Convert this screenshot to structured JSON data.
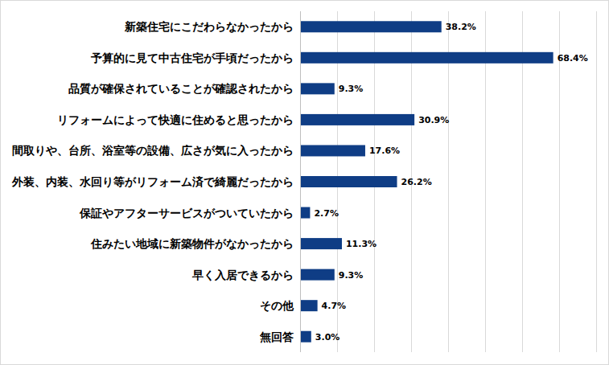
{
  "chart_data": {
    "type": "bar",
    "orientation": "horizontal",
    "categories": [
      "新築住宅にこだわらなかったから",
      "予算的に見て中古住宅が手頃だったから",
      "品質が確保されていることが確認されたから",
      "リフォームによって快適に住めると思ったから",
      "間取りや、台所、浴室等の設備、広さが気に入ったから",
      "外装、内装、水回り等がリフォーム済で綺麗だったから",
      "保証やアフターサービスがついていたから",
      "住みたい地域に新築物件がなかったから",
      "早く入居できるから",
      "その他",
      "無回答"
    ],
    "values": [
      38.2,
      68.4,
      9.3,
      30.9,
      17.6,
      26.2,
      2.7,
      11.3,
      9.3,
      4.7,
      3.0
    ],
    "value_labels": [
      "38.2%",
      "68.4%",
      "9.3%",
      "30.9%",
      "17.6%",
      "26.2%",
      "2.7%",
      "11.3%",
      "9.3%",
      "4.7%",
      "3.0%"
    ],
    "color": "#0f3d85",
    "xlim": [
      0,
      80
    ],
    "xticks": [
      0,
      10,
      20,
      30,
      40,
      50,
      60,
      70,
      80
    ],
    "grid": true,
    "data_labels": true,
    "tick_labels": false
  }
}
